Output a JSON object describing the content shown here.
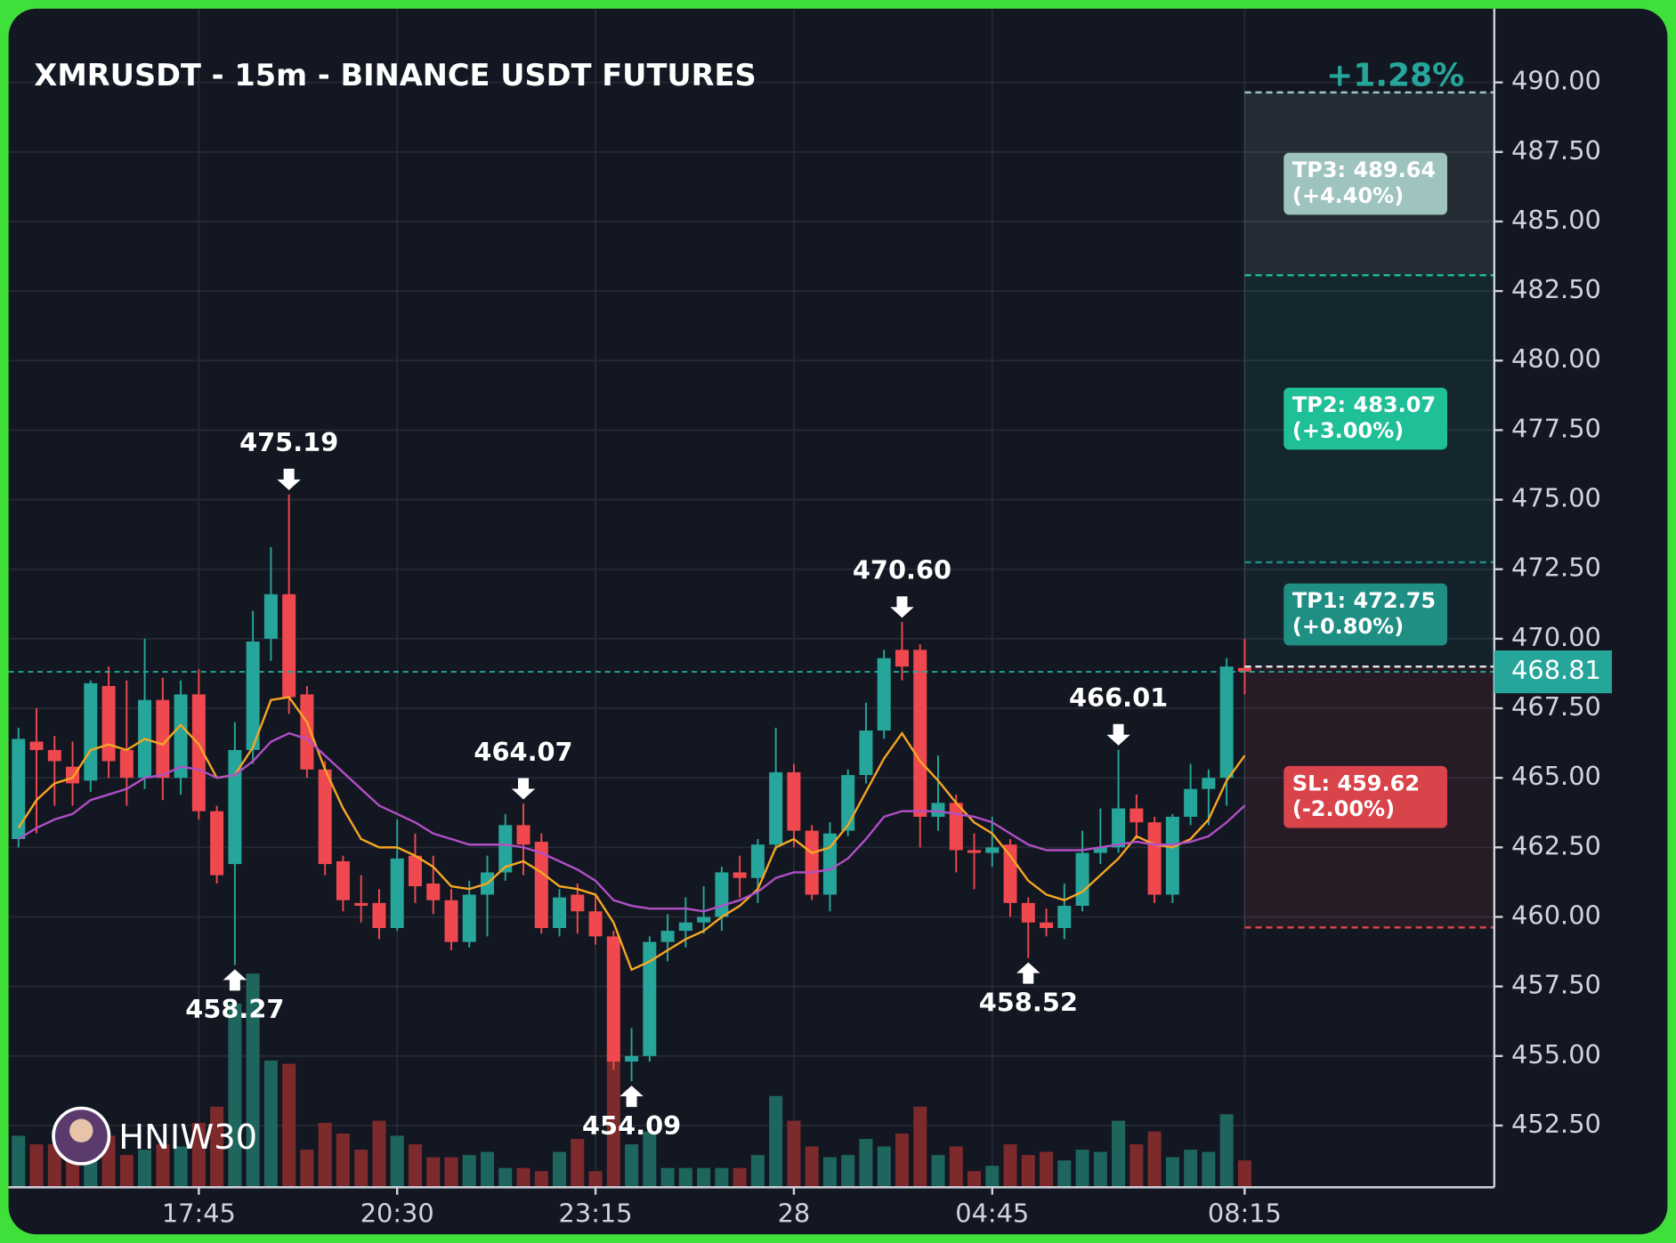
{
  "chart_data": {
    "type": "candlestick",
    "title": "XMRUSDT - 15m - BINANCE USDT FUTURES",
    "change_label": "+1.28%",
    "watermark": "HNIW30",
    "up_color": "#26a69a",
    "down_color": "#f0484f",
    "grid": true,
    "categories": [
      null,
      null,
      null,
      null,
      null,
      null,
      null,
      null,
      null,
      null,
      "17:45",
      null,
      null,
      null,
      null,
      null,
      null,
      null,
      null,
      null,
      null,
      "20:30",
      null,
      null,
      null,
      null,
      null,
      null,
      null,
      null,
      null,
      null,
      "23:15",
      null,
      null,
      null,
      null,
      null,
      null,
      null,
      null,
      null,
      null,
      "28",
      null,
      null,
      null,
      null,
      null,
      null,
      null,
      null,
      null,
      null,
      "04:45",
      null,
      null,
      null,
      null,
      null,
      null,
      null,
      null,
      null,
      null,
      null,
      null,
      null,
      "08:15"
    ],
    "open": [
      462.8,
      466.3,
      466.0,
      465.4,
      464.9,
      468.3,
      466.0,
      465.0,
      467.8,
      465.0,
      468.0,
      463.8,
      461.9,
      466.0,
      470.0,
      471.6,
      468.0,
      465.3,
      462.0,
      460.5,
      460.5,
      459.6,
      462.2,
      461.2,
      460.6,
      459.1,
      460.8,
      461.6,
      463.3,
      462.7,
      459.6,
      460.8,
      460.2,
      459.3,
      454.8,
      455.0,
      459.1,
      459.5,
      459.8,
      460.0,
      461.6,
      461.4,
      462.6,
      465.2,
      463.1,
      460.8,
      463.1,
      465.1,
      466.7,
      469.6,
      469.6,
      463.6,
      464.1,
      462.4,
      462.3,
      462.6,
      460.5,
      459.8,
      459.6,
      460.4,
      462.3,
      462.5,
      463.9,
      463.4,
      460.8,
      463.6,
      464.6,
      465.0,
      468.95
    ],
    "high": [
      466.8,
      467.5,
      466.5,
      466.3,
      468.5,
      469.0,
      468.5,
      470.0,
      468.6,
      468.5,
      468.9,
      464.0,
      467.0,
      471.0,
      473.3,
      475.19,
      468.3,
      465.6,
      462.2,
      461.5,
      461.0,
      463.5,
      463.0,
      462.2,
      461.0,
      461.3,
      462.2,
      463.7,
      464.07,
      463.0,
      461.0,
      461.2,
      460.8,
      459.5,
      456.0,
      459.3,
      460.1,
      460.7,
      461.1,
      461.8,
      462.2,
      462.8,
      466.8,
      465.5,
      463.3,
      463.4,
      465.3,
      467.7,
      469.6,
      470.6,
      469.8,
      465.8,
      464.4,
      463.0,
      463.6,
      462.8,
      460.7,
      460.3,
      461.2,
      463.1,
      463.9,
      466.01,
      464.4,
      463.6,
      463.7,
      465.5,
      465.3,
      469.3,
      470.0
    ],
    "low": [
      462.5,
      463.0,
      464.0,
      464.0,
      464.5,
      465.0,
      464.0,
      464.6,
      464.2,
      464.4,
      463.5,
      461.2,
      458.27,
      465.5,
      469.2,
      467.3,
      465.0,
      461.5,
      460.2,
      459.8,
      459.2,
      459.5,
      460.5,
      460.1,
      458.8,
      458.9,
      459.3,
      461.3,
      461.5,
      459.4,
      459.3,
      459.4,
      459.0,
      454.5,
      454.09,
      454.8,
      458.4,
      458.9,
      459.4,
      459.5,
      460.7,
      460.5,
      462.4,
      462.5,
      460.6,
      460.2,
      462.9,
      464.8,
      466.4,
      468.5,
      462.5,
      463.1,
      461.6,
      461.0,
      461.8,
      460.0,
      458.52,
      459.3,
      459.2,
      460.2,
      461.9,
      462.3,
      462.8,
      460.5,
      460.5,
      463.3,
      463.3,
      464.0,
      468.0
    ],
    "close": [
      466.4,
      466.0,
      465.6,
      464.8,
      468.4,
      465.6,
      465.0,
      467.8,
      465.0,
      468.0,
      463.8,
      461.5,
      466.0,
      469.9,
      471.6,
      467.9,
      465.3,
      461.9,
      460.6,
      460.4,
      459.6,
      462.1,
      461.1,
      460.6,
      459.1,
      460.8,
      461.6,
      463.3,
      462.6,
      459.6,
      460.7,
      460.2,
      459.3,
      454.8,
      455.0,
      459.1,
      459.5,
      459.8,
      460.0,
      461.6,
      461.4,
      462.6,
      465.2,
      463.1,
      460.8,
      463.0,
      465.1,
      466.7,
      469.3,
      469.0,
      463.6,
      464.1,
      462.4,
      462.3,
      462.5,
      460.5,
      459.8,
      459.6,
      460.4,
      462.3,
      462.5,
      463.9,
      463.4,
      460.8,
      463.6,
      464.6,
      465.0,
      469.0,
      468.81
    ],
    "volume": {
      "up_color": "#1e655e",
      "down_color": "#7c2a2c",
      "values": [
        48,
        40,
        40,
        35,
        30,
        48,
        30,
        35,
        40,
        38,
        60,
        75,
        171,
        199,
        118,
        115,
        35,
        60,
        50,
        35,
        62,
        48,
        40,
        28,
        28,
        30,
        33,
        18,
        18,
        15,
        33,
        45,
        15,
        128,
        40,
        52,
        18,
        18,
        18,
        18,
        18,
        30,
        85,
        62,
        38,
        28,
        30,
        45,
        38,
        50,
        75,
        30,
        38,
        15,
        20,
        40,
        30,
        33,
        25,
        35,
        33,
        62,
        40,
        52,
        28,
        35,
        33,
        68,
        25
      ]
    },
    "ma": [
      {
        "color": "#f5a623",
        "values": [
          463.2,
          464.2,
          464.8,
          465.0,
          466.0,
          466.2,
          466.0,
          466.4,
          466.2,
          466.9,
          466.2,
          465.0,
          465.1,
          466.1,
          467.8,
          467.9,
          467.0,
          465.3,
          463.9,
          462.8,
          462.5,
          462.5,
          462.2,
          461.8,
          461.1,
          461.0,
          461.2,
          461.8,
          462.0,
          461.6,
          461.1,
          461.0,
          460.8,
          459.8,
          458.1,
          458.4,
          458.8,
          459.2,
          459.5,
          460.0,
          460.4,
          461.0,
          462.5,
          462.8,
          462.3,
          462.5,
          463.3,
          464.5,
          465.7,
          466.6,
          465.6,
          464.9,
          464.1,
          463.4,
          463.0,
          462.2,
          461.3,
          460.8,
          460.6,
          460.9,
          461.5,
          462.1,
          462.9,
          462.6,
          462.5,
          462.8,
          463.5,
          464.9,
          465.8
        ]
      },
      {
        "color": "#b14fc5",
        "values": [
          462.8,
          463.2,
          463.5,
          463.7,
          464.2,
          464.4,
          464.6,
          465.0,
          465.1,
          465.4,
          465.3,
          465.0,
          465.1,
          465.6,
          466.3,
          466.6,
          466.4,
          465.8,
          465.2,
          464.6,
          464.0,
          463.7,
          463.4,
          463.0,
          462.8,
          462.6,
          462.6,
          462.6,
          462.5,
          462.3,
          462.0,
          461.7,
          461.3,
          460.6,
          460.4,
          460.3,
          460.3,
          460.3,
          460.2,
          460.4,
          460.6,
          460.9,
          461.4,
          461.6,
          461.6,
          461.7,
          462.1,
          462.8,
          463.6,
          463.8,
          463.8,
          463.8,
          463.7,
          463.6,
          463.4,
          463.0,
          462.6,
          462.4,
          462.4,
          462.4,
          462.5,
          462.6,
          462.7,
          462.6,
          462.6,
          462.7,
          462.9,
          463.4,
          464.0
        ]
      }
    ],
    "ylim": [
      450.28,
      492.65
    ],
    "yticks": [
      {
        "value": 452.5,
        "label": "452.50"
      },
      {
        "value": 455,
        "label": "455.00"
      },
      {
        "value": 457.5,
        "label": "457.50"
      },
      {
        "value": 460,
        "label": "460.00"
      },
      {
        "value": 462.5,
        "label": "462.50"
      },
      {
        "value": 465,
        "label": "465.00"
      },
      {
        "value": 467.5,
        "label": "467.50"
      },
      {
        "value": 470,
        "label": "470.00"
      },
      {
        "value": 472.5,
        "label": "472.50"
      },
      {
        "value": 475,
        "label": "475.00"
      },
      {
        "value": 477.5,
        "label": "477.50"
      },
      {
        "value": 480,
        "label": "480.00"
      },
      {
        "value": 482.5,
        "label": "482.50"
      },
      {
        "value": 485,
        "label": "485.00"
      },
      {
        "value": 487.5,
        "label": "487.50"
      },
      {
        "value": 490,
        "label": "490.00"
      }
    ],
    "last_price": {
      "value": 468.81,
      "label": "468.81",
      "color": "#26a69a"
    },
    "annotations": [
      {
        "value": 475.19,
        "label": "475.19",
        "side": "high"
      },
      {
        "value": 458.27,
        "label": "458.27",
        "side": "low"
      },
      {
        "value": 464.07,
        "label": "464.07",
        "side": "high"
      },
      {
        "value": 454.09,
        "label": "454.09",
        "side": "low"
      },
      {
        "value": 470.6,
        "label": "470.60",
        "side": "high"
      },
      {
        "value": 458.52,
        "label": "458.52",
        "side": "low"
      },
      {
        "value": 466.01,
        "label": "466.01",
        "side": "high"
      }
    ],
    "position": {
      "entry": 469.0,
      "entry_color": "#e8e8e8",
      "levels": [
        {
          "label": "TP3: 489.64",
          "change": "(+4.40%)",
          "value": 489.64,
          "color": "#9fc4c0"
        },
        {
          "label": "TP2: 483.07",
          "change": "(+3.00%)",
          "value": 483.07,
          "color": "#1fbf98"
        },
        {
          "label": "TP1: 472.75",
          "change": "(+0.80%)",
          "value": 472.75,
          "color": "#1f8f84"
        },
        {
          "label": "SL: 459.62",
          "change": "(-2.00%)",
          "value": 459.62,
          "color": "#d9434a"
        }
      ]
    }
  }
}
